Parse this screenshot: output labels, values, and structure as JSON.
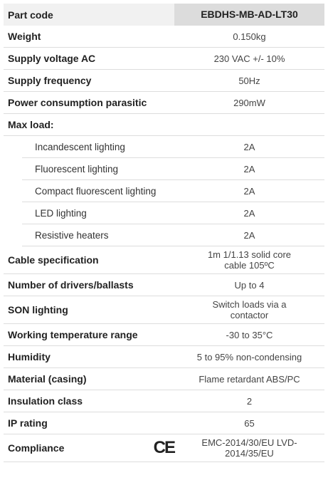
{
  "header": {
    "label": "Part code",
    "value": "EBDHS-MB-AD-LT30"
  },
  "rows_before": [
    {
      "label": "Weight",
      "value": "0.150kg"
    },
    {
      "label": "Supply voltage AC",
      "value": "230 VAC +/- 10%"
    },
    {
      "label": "Supply frequency",
      "value": "50Hz"
    },
    {
      "label": "Power consumption parasitic",
      "value": "290mW"
    }
  ],
  "group": {
    "label": "Max load:",
    "items": [
      {
        "label": "Incandescent lighting",
        "value": "2A"
      },
      {
        "label": "Fluorescent lighting",
        "value": "2A"
      },
      {
        "label": "Compact fluorescent lighting",
        "value": "2A"
      },
      {
        "label": "LED lighting",
        "value": "2A"
      },
      {
        "label": "Resistive heaters",
        "value": "2A"
      }
    ]
  },
  "rows_after": [
    {
      "label": "Cable specification",
      "value": "1m 1/1.13 solid core cable 105ºC"
    },
    {
      "label": "Number of drivers/ballasts",
      "value": "Up to 4"
    },
    {
      "label": "SON lighting",
      "value": "Switch loads via a contactor"
    },
    {
      "label": "Working temperature range",
      "value": "-30 to 35°C"
    },
    {
      "label": "Humidity",
      "value": "5 to 95% non-condensing"
    },
    {
      "label": "Material (casing)",
      "value": "Flame retardant ABS/PC"
    },
    {
      "label": "Insulation class",
      "value": "2"
    },
    {
      "label": "IP rating",
      "value": "65"
    },
    {
      "label": "Compliance",
      "logo": "CE",
      "value": "EMC-2014/30/EU LVD-2014/35/EU"
    }
  ]
}
